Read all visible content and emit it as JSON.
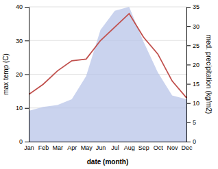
{
  "chart_data": {
    "type": "line",
    "categories": [
      "Jan",
      "Feb",
      "Mar",
      "Apr",
      "May",
      "Jun",
      "Jul",
      "Aug",
      "Sep",
      "Oct",
      "Nov",
      "Dec"
    ],
    "xlabel": "date (month)",
    "ylabel": "max temp (C)",
    "y2label": "med. precipitation (kg/m2)",
    "ylim": [
      0,
      40
    ],
    "yticks": [
      0,
      10,
      20,
      30,
      40
    ],
    "y2lim": [
      0,
      35
    ],
    "y2ticks": [
      0,
      5,
      10,
      15,
      20,
      25,
      30,
      35
    ],
    "grid": true,
    "series": [
      {
        "type": "area",
        "axis": "y2",
        "color": "#b8c4e8",
        "values": [
          8,
          9,
          9.5,
          11,
          17,
          29,
          34,
          35,
          26,
          18,
          12,
          11
        ]
      },
      {
        "type": "line",
        "color": "#c0504d",
        "values": [
          14,
          17,
          21,
          24,
          24.5,
          30,
          34,
          38,
          31,
          26,
          18,
          13
        ]
      }
    ]
  }
}
